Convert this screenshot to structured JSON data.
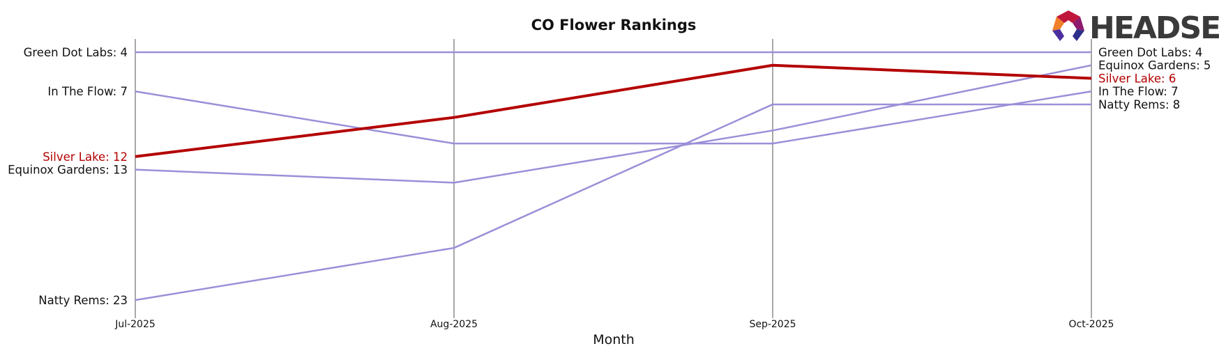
{
  "chart_data": {
    "type": "line",
    "title": "CO Flower Rankings",
    "xlabel": "Month",
    "ylabel": "",
    "categories": [
      "Jul-2025",
      "Aug-2025",
      "Sep-2025",
      "Oct-2025"
    ],
    "y_inverted": true,
    "ylim": [
      3,
      24
    ],
    "grid": "vertical lines at each month",
    "highlight_color": "#b30000",
    "series_color": "#9b8fd8",
    "series": [
      {
        "name": "Green Dot Labs",
        "values": [
          4,
          4,
          4,
          4
        ],
        "highlight": false
      },
      {
        "name": "In The Flow",
        "values": [
          7,
          11,
          11,
          7
        ],
        "highlight": false
      },
      {
        "name": "Equinox Gardens",
        "values": [
          13,
          14,
          10,
          5
        ],
        "highlight": false
      },
      {
        "name": "Natty Rems",
        "values": [
          23,
          19,
          8,
          8
        ],
        "highlight": false
      },
      {
        "name": "Silver Lake",
        "values": [
          12,
          9,
          5,
          6
        ],
        "highlight": true
      }
    ],
    "left_labels": [
      {
        "series": "Green Dot Labs",
        "text": "Green Dot Labs: 4"
      },
      {
        "series": "In The Flow",
        "text": "In The Flow: 7"
      },
      {
        "series": "Silver Lake",
        "text": "Silver Lake: 12"
      },
      {
        "series": "Equinox Gardens",
        "text": "Equinox Gardens: 13"
      },
      {
        "series": "Natty Rems",
        "text": "Natty Rems: 23"
      }
    ],
    "right_labels": [
      {
        "series": "Green Dot Labs",
        "text": "Green Dot Labs: 4"
      },
      {
        "series": "Equinox Gardens",
        "text": "Equinox Gardens: 5"
      },
      {
        "series": "Silver Lake",
        "text": "Silver Lake: 6"
      },
      {
        "series": "In The Flow",
        "text": "In The Flow: 7"
      },
      {
        "series": "Natty Rems",
        "text": "Natty Rems: 8"
      }
    ]
  },
  "logo": {
    "text": "HEADSET",
    "icon": "headset-logo-icon"
  }
}
